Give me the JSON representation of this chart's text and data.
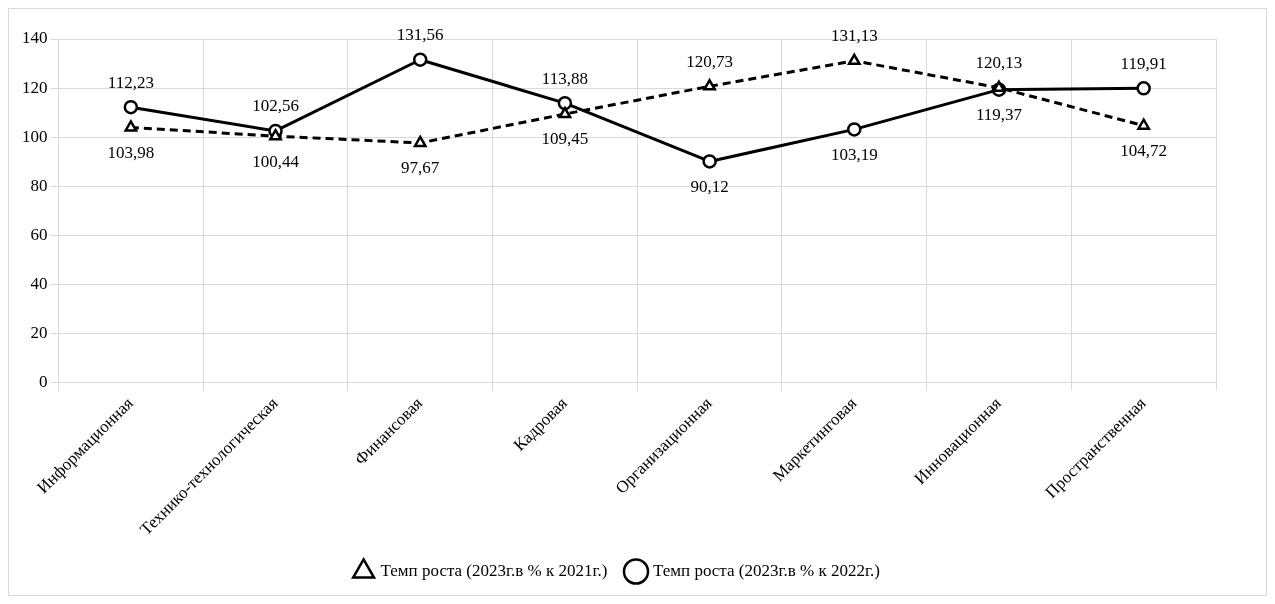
{
  "chart_data": {
    "type": "line",
    "categories": [
      "Информационная",
      "Технико-технологическая",
      "Финансовая",
      "Кадровая",
      "Организационная",
      "Маркетинговая",
      "Инновационная",
      "Пространственная"
    ],
    "series": [
      {
        "name": "Темп роста (2023г.в % к 2021г.)",
        "color": "#000000",
        "marker": "triangle",
        "line_style": "dashed",
        "values": [
          103.98,
          100.44,
          97.67,
          109.45,
          120.73,
          131.13,
          120.13,
          104.72
        ],
        "value_labels": [
          "103,98",
          "100,44",
          "97,67",
          "109,45",
          "120,73",
          "131,13",
          "120,13",
          "104,72"
        ]
      },
      {
        "name": "Темп роста (2023г.в % к 2022г.)",
        "color": "#000000",
        "marker": "circle",
        "line_style": "solid",
        "values": [
          112.23,
          102.56,
          131.56,
          113.88,
          90.12,
          103.19,
          119.37,
          119.91
        ],
        "value_labels": [
          "112,23",
          "102,56",
          "131,56",
          "113,88",
          "90,12",
          "103,19",
          "119,37",
          "119,91"
        ]
      }
    ],
    "ylim": [
      0,
      140
    ],
    "yticks": [
      0,
      20,
      40,
      60,
      80,
      100,
      120,
      140
    ],
    "grid": true,
    "legend": "bottom"
  }
}
